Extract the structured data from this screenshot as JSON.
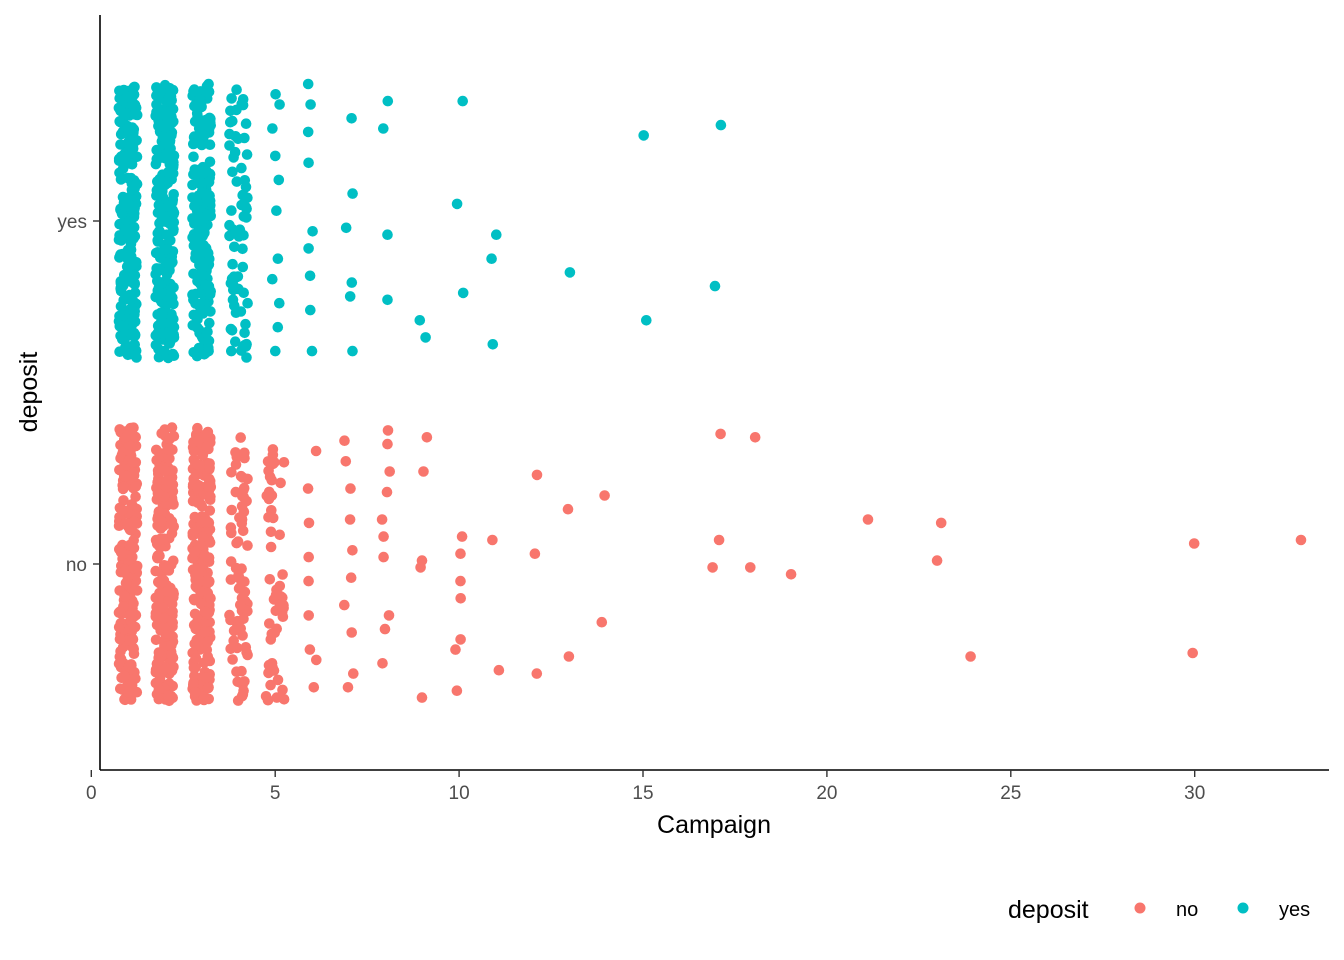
{
  "chart_data": {
    "type": "scatter",
    "jitter": true,
    "xlabel": "Campaign",
    "ylabel": "deposit",
    "xlim": [
      0,
      33.5
    ],
    "x_ticks": [
      0,
      5,
      10,
      15,
      20,
      25,
      30
    ],
    "categories": [
      "no",
      "yes"
    ],
    "grid": false,
    "legend": {
      "title": "deposit",
      "placement": "bottom-right"
    },
    "colors": {
      "no": "#F8766D",
      "yes": "#00BFC4"
    },
    "series": [
      {
        "name": "no",
        "category": "no",
        "x_dense_columns": [
          1,
          2,
          3,
          4,
          5
        ],
        "points": [
          {
            "x": 6,
            "y": 0.33
          },
          {
            "x": 6,
            "y": 0.22
          },
          {
            "x": 6,
            "y": 0.12
          },
          {
            "x": 6,
            "y": 0.02
          },
          {
            "x": 6,
            "y": -0.05
          },
          {
            "x": 6,
            "y": -0.15
          },
          {
            "x": 6,
            "y": -0.25
          },
          {
            "x": 6,
            "y": -0.28
          },
          {
            "x": 6,
            "y": -0.36
          },
          {
            "x": 7,
            "y": 0.36
          },
          {
            "x": 7,
            "y": 0.3
          },
          {
            "x": 7,
            "y": 0.22
          },
          {
            "x": 7,
            "y": 0.13
          },
          {
            "x": 7,
            "y": 0.04
          },
          {
            "x": 7,
            "y": -0.04
          },
          {
            "x": 7,
            "y": -0.12
          },
          {
            "x": 7,
            "y": -0.2
          },
          {
            "x": 7,
            "y": -0.32
          },
          {
            "x": 7,
            "y": -0.36
          },
          {
            "x": 8,
            "y": 0.39
          },
          {
            "x": 8,
            "y": 0.35
          },
          {
            "x": 8,
            "y": 0.27
          },
          {
            "x": 8,
            "y": 0.21
          },
          {
            "x": 8,
            "y": 0.13
          },
          {
            "x": 8,
            "y": 0.08
          },
          {
            "x": 8,
            "y": 0.02
          },
          {
            "x": 8,
            "y": -0.15
          },
          {
            "x": 8,
            "y": -0.19
          },
          {
            "x": 8,
            "y": -0.29
          },
          {
            "x": 9,
            "y": 0.37
          },
          {
            "x": 9,
            "y": 0.27
          },
          {
            "x": 9,
            "y": 0.01
          },
          {
            "x": 9,
            "y": -0.01
          },
          {
            "x": 9,
            "y": -0.39
          },
          {
            "x": 10,
            "y": 0.08
          },
          {
            "x": 10,
            "y": 0.03
          },
          {
            "x": 10,
            "y": -0.05
          },
          {
            "x": 10,
            "y": -0.1
          },
          {
            "x": 10,
            "y": -0.22
          },
          {
            "x": 10,
            "y": -0.25
          },
          {
            "x": 10,
            "y": -0.37
          },
          {
            "x": 11,
            "y": 0.07
          },
          {
            "x": 11,
            "y": -0.31
          },
          {
            "x": 12,
            "y": 0.26
          },
          {
            "x": 12,
            "y": 0.03
          },
          {
            "x": 12,
            "y": -0.32
          },
          {
            "x": 13,
            "y": 0.16
          },
          {
            "x": 13,
            "y": -0.27
          },
          {
            "x": 14,
            "y": 0.2
          },
          {
            "x": 14,
            "y": -0.17
          },
          {
            "x": 17,
            "y": 0.38
          },
          {
            "x": 17,
            "y": 0.07
          },
          {
            "x": 17,
            "y": -0.01
          },
          {
            "x": 18,
            "y": 0.37
          },
          {
            "x": 18,
            "y": -0.01
          },
          {
            "x": 19,
            "y": -0.03
          },
          {
            "x": 21,
            "y": 0.13
          },
          {
            "x": 23,
            "y": 0.12
          },
          {
            "x": 23,
            "y": 0.01
          },
          {
            "x": 24,
            "y": -0.27
          },
          {
            "x": 30,
            "y": 0.06
          },
          {
            "x": 30,
            "y": -0.26
          },
          {
            "x": 33,
            "y": 0.07
          }
        ]
      },
      {
        "name": "yes",
        "category": "yes",
        "x_dense_columns": [
          1,
          2,
          3,
          4
        ],
        "points": [
          {
            "x": 5,
            "y": 0.37
          },
          {
            "x": 5,
            "y": 0.34
          },
          {
            "x": 5,
            "y": 0.27
          },
          {
            "x": 5,
            "y": 0.19
          },
          {
            "x": 5,
            "y": 0.12
          },
          {
            "x": 5,
            "y": 0.03
          },
          {
            "x": 5,
            "y": -0.11
          },
          {
            "x": 5,
            "y": -0.17
          },
          {
            "x": 5,
            "y": -0.24
          },
          {
            "x": 5,
            "y": -0.31
          },
          {
            "x": 5,
            "y": -0.38
          },
          {
            "x": 6,
            "y": 0.4
          },
          {
            "x": 6,
            "y": 0.34
          },
          {
            "x": 6,
            "y": 0.26
          },
          {
            "x": 6,
            "y": 0.17
          },
          {
            "x": 6,
            "y": -0.03
          },
          {
            "x": 6,
            "y": -0.08
          },
          {
            "x": 6,
            "y": -0.16
          },
          {
            "x": 6,
            "y": -0.26
          },
          {
            "x": 6,
            "y": -0.38
          },
          {
            "x": 7,
            "y": 0.3
          },
          {
            "x": 7,
            "y": 0.08
          },
          {
            "x": 7,
            "y": -0.02
          },
          {
            "x": 7,
            "y": -0.18
          },
          {
            "x": 7,
            "y": -0.22
          },
          {
            "x": 7,
            "y": -0.38
          },
          {
            "x": 8,
            "y": 0.35
          },
          {
            "x": 8,
            "y": 0.27
          },
          {
            "x": 8,
            "y": -0.04
          },
          {
            "x": 8,
            "y": -0.23
          },
          {
            "x": 9,
            "y": -0.29
          },
          {
            "x": 9,
            "y": -0.34
          },
          {
            "x": 10,
            "y": 0.35
          },
          {
            "x": 10,
            "y": 0.05
          },
          {
            "x": 10,
            "y": -0.21
          },
          {
            "x": 11,
            "y": -0.04
          },
          {
            "x": 11,
            "y": -0.11
          },
          {
            "x": 11,
            "y": -0.36
          },
          {
            "x": 13,
            "y": -0.15
          },
          {
            "x": 15,
            "y": 0.25
          },
          {
            "x": 15,
            "y": -0.29
          },
          {
            "x": 17,
            "y": 0.28
          },
          {
            "x": 17,
            "y": -0.19
          }
        ]
      }
    ]
  }
}
